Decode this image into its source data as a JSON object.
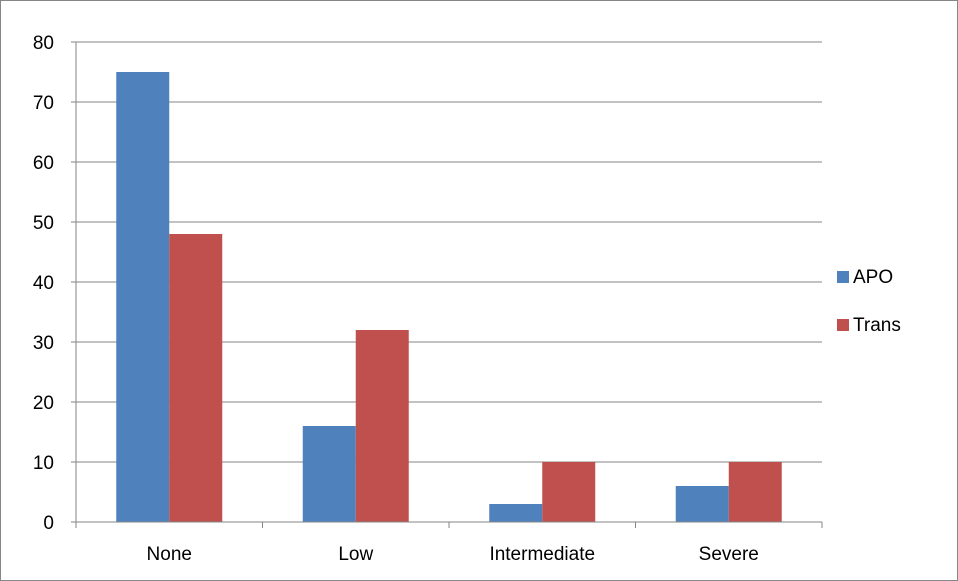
{
  "chart_data": {
    "type": "bar",
    "categories": [
      "None",
      "Low",
      "Intermediate",
      "Severe"
    ],
    "series": [
      {
        "name": "APO",
        "values": [
          75,
          16,
          3,
          6
        ],
        "color": "#4F81BD"
      },
      {
        "name": "Trans",
        "values": [
          48,
          32,
          10,
          10
        ],
        "color": "#C0504D"
      }
    ],
    "title": "",
    "xlabel": "",
    "ylabel": "",
    "ylim": [
      0,
      80
    ],
    "yticks": [
      0,
      10,
      20,
      30,
      40,
      50,
      60,
      70,
      80
    ],
    "grid": true,
    "legend_position": "right"
  }
}
